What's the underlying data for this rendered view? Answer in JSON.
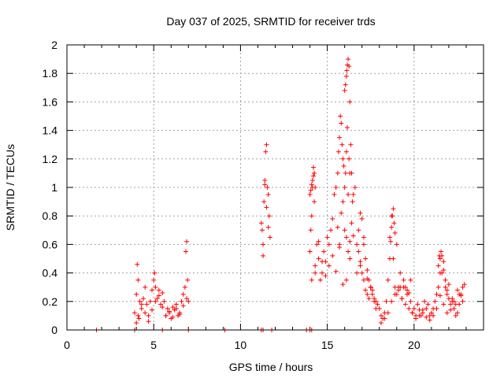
{
  "chart_data": {
    "type": "scatter",
    "title": "Day 037 of 2025, SRMTID for receiver trds",
    "xlabel": "GPS time / hours",
    "ylabel": "SRMTID / TECUs",
    "xlim": [
      0,
      24
    ],
    "ylim": [
      0,
      2
    ],
    "xticks": [
      0,
      5,
      10,
      15,
      20
    ],
    "xtick_labels": [
      "0",
      "5",
      "10",
      "15",
      "20"
    ],
    "yticks": [
      0,
      0.2,
      0.4,
      0.6,
      0.8,
      1,
      1.2,
      1.4,
      1.6,
      1.8,
      2
    ],
    "ytick_labels": [
      "0",
      "0.2",
      "0.4",
      "0.6",
      "0.8",
      "1",
      "1.2",
      "1.4",
      "1.6",
      "1.8",
      "2"
    ],
    "grid": true,
    "marker": "+",
    "marker_color": "#ff0000",
    "series": [
      {
        "name": "SRMTID",
        "x": [
          1.7,
          3.9,
          5.5,
          7.0,
          9.1,
          11.2,
          11.3,
          11.8,
          13.8,
          14.0,
          14.1,
          3.9,
          4.0,
          4.05,
          4.1,
          4.15,
          4.2,
          4.3,
          4.4,
          4.5,
          4.6,
          4.7,
          4.8,
          4.9,
          5.0,
          5.05,
          5.1,
          5.2,
          5.3,
          5.4,
          5.5,
          5.6,
          5.7,
          5.8,
          5.9,
          6.0,
          6.1,
          6.2,
          6.3,
          6.4,
          6.5,
          6.6,
          6.7,
          6.8,
          6.85,
          6.9,
          6.95,
          7.0,
          4.0,
          4.1,
          4.3,
          4.5,
          4.7,
          4.9,
          5.1,
          5.3,
          5.5,
          5.7,
          5.9,
          6.1,
          6.3,
          6.5,
          6.7,
          6.9,
          11.2,
          11.25,
          11.3,
          11.35,
          11.4,
          11.45,
          11.5,
          11.55,
          11.6,
          11.65,
          11.7,
          11.3,
          11.4,
          11.5,
          11.6,
          14.0,
          14.05,
          14.1,
          14.15,
          14.2,
          14.25,
          14.3,
          14.4,
          14.5,
          14.6,
          14.7,
          14.8,
          14.9,
          15.0,
          15.1,
          15.2,
          15.3,
          15.4,
          15.5,
          15.6,
          15.7,
          15.8,
          15.9,
          16.0,
          16.1,
          16.2,
          16.3,
          16.4,
          16.5,
          16.6,
          16.7,
          16.8,
          16.9,
          17.0,
          17.1,
          17.2,
          17.3,
          17.4,
          17.5,
          17.6,
          17.7,
          17.8,
          17.9,
          14.1,
          14.3,
          14.5,
          14.7,
          14.9,
          15.1,
          15.3,
          15.5,
          15.7,
          15.9,
          16.1,
          16.3,
          16.5,
          16.7,
          16.9,
          17.1,
          17.3,
          17.5,
          15.6,
          15.65,
          15.7,
          15.75,
          15.8,
          15.85,
          15.9,
          15.95,
          16.0,
          16.05,
          16.1,
          16.15,
          16.2,
          16.25,
          16.3,
          16.0,
          16.05,
          16.1,
          16.12,
          16.15,
          16.2,
          16.25,
          16.3,
          16.35,
          16.4,
          16.45,
          14.0,
          14.05,
          14.1,
          14.15,
          14.2,
          14.25,
          14.3,
          16.8,
          16.9,
          17.0,
          17.1,
          17.2,
          17.3,
          17.4,
          17.5,
          17.6,
          17.7,
          17.8,
          18.0,
          18.1,
          18.2,
          18.3,
          18.4,
          18.5,
          18.6,
          18.7,
          18.8,
          18.9,
          19.0,
          19.1,
          19.2,
          19.3,
          19.4,
          19.5,
          19.6,
          19.7,
          19.8,
          19.9,
          20.0,
          20.1,
          20.2,
          20.3,
          20.4,
          20.5,
          20.6,
          20.7,
          20.8,
          20.9,
          21.0,
          21.1,
          21.2,
          21.3,
          21.4,
          21.5,
          21.6,
          21.7,
          21.8,
          21.9,
          22.0,
          22.1,
          22.2,
          22.3,
          22.4,
          22.5,
          22.6,
          22.7,
          22.8,
          22.9,
          18.6,
          18.65,
          18.7,
          18.75,
          18.8,
          18.85,
          18.9,
          19.0,
          19.2,
          19.4,
          19.6,
          19.8,
          21.4,
          21.45,
          21.5,
          21.55,
          21.6,
          21.7,
          21.8,
          21.9,
          22.0,
          22.2,
          22.4,
          22.6,
          22.8,
          18.1,
          18.3,
          18.5,
          18.7,
          18.9,
          19.1,
          19.3,
          19.5,
          19.7,
          19.9,
          20.1,
          20.3,
          20.5,
          20.7,
          20.9,
          21.1,
          21.3,
          21.5,
          21.7,
          21.9,
          22.1,
          22.3,
          22.5,
          22.7
        ],
        "y": [
          0,
          0,
          0,
          0,
          0,
          0,
          0,
          0,
          0,
          0,
          0,
          0.12,
          0.25,
          0.46,
          0.35,
          0.08,
          0.2,
          0.15,
          0.22,
          0.3,
          0.18,
          0.1,
          0.2,
          0.28,
          0.35,
          0.4,
          0.3,
          0.22,
          0.28,
          0.18,
          0.26,
          0.2,
          0.1,
          0.15,
          0.12,
          0.08,
          0.16,
          0.14,
          0.18,
          0.1,
          0.12,
          0.2,
          0.25,
          0.3,
          0.55,
          0.62,
          0.35,
          0.2,
          0.05,
          0.1,
          0.18,
          0.12,
          0.06,
          0.14,
          0.2,
          0.24,
          0.16,
          0.1,
          0.13,
          0.09,
          0.15,
          0.11,
          0.17,
          0.22,
          0.75,
          0.7,
          0.52,
          0.9,
          1.05,
          1.25,
          1.3,
          1.0,
          0.95,
          0.8,
          0.65,
          0.6,
          1.02,
          0.86,
          0.72,
          0.55,
          0.7,
          0.8,
          1.0,
          1.14,
          0.9,
          0.45,
          0.6,
          0.5,
          0.35,
          0.4,
          0.55,
          0.48,
          0.65,
          0.6,
          0.7,
          0.78,
          0.95,
          1.0,
          0.72,
          0.6,
          0.82,
          0.9,
          0.7,
          0.65,
          0.55,
          0.5,
          0.75,
          0.95,
          1.0,
          0.6,
          0.55,
          0.45,
          0.4,
          0.35,
          0.28,
          0.25,
          0.22,
          0.3,
          0.25,
          0.2,
          0.15,
          0.18,
          0.35,
          0.4,
          0.62,
          0.48,
          0.38,
          0.45,
          0.52,
          0.41,
          0.58,
          0.32,
          0.35,
          0.62,
          0.66,
          0.4,
          0.48,
          0.6,
          0.36,
          0.3,
          1.1,
          1.25,
          1.35,
          1.5,
          1.45,
          1.3,
          1.2,
          1.15,
          1.0,
          1.1,
          1.25,
          1.42,
          0.95,
          1.2,
          1.1,
          1.68,
          1.72,
          1.78,
          1.82,
          1.86,
          1.9,
          1.85,
          1.6,
          1.3,
          1.1,
          0.9,
          0.95,
          0.98,
          1.02,
          1.05,
          1.08,
          1.1,
          1.0,
          0.7,
          0.82,
          0.78,
          0.65,
          0.5,
          0.42,
          0.35,
          0.3,
          0.28,
          0.22,
          0.2,
          0.15,
          0.1,
          0.08,
          0.12,
          0.2,
          0.35,
          0.65,
          0.8,
          0.5,
          0.3,
          0.25,
          0.28,
          0.3,
          0.22,
          0.35,
          0.3,
          0.25,
          0.15,
          0.2,
          0.12,
          0.15,
          0.1,
          0.18,
          0.14,
          0.1,
          0.12,
          0.2,
          0.15,
          0.18,
          0.1,
          0.12,
          0.15,
          0.2,
          0.25,
          0.3,
          0.4,
          0.52,
          0.48,
          0.35,
          0.28,
          0.22,
          0.18,
          0.2,
          0.15,
          0.1,
          0.12,
          0.18,
          0.25,
          0.3,
          0.32,
          0.5,
          0.62,
          0.72,
          0.8,
          0.85,
          0.75,
          0.68,
          0.6,
          0.4,
          0.3,
          0.28,
          0.35,
          0.45,
          0.52,
          0.5,
          0.55,
          0.4,
          0.42,
          0.3,
          0.25,
          0.32,
          0.22,
          0.18,
          0.25,
          0.2,
          0.05,
          0.08,
          0.12,
          0.2,
          0.25,
          0.3,
          0.22,
          0.18,
          0.26,
          0.12,
          0.08,
          0.1,
          0.14,
          0.09,
          0.07,
          0.1,
          0.15,
          0.24,
          0.18,
          0.12,
          0.14,
          0.2,
          0.28,
          0.24
        ]
      }
    ]
  }
}
